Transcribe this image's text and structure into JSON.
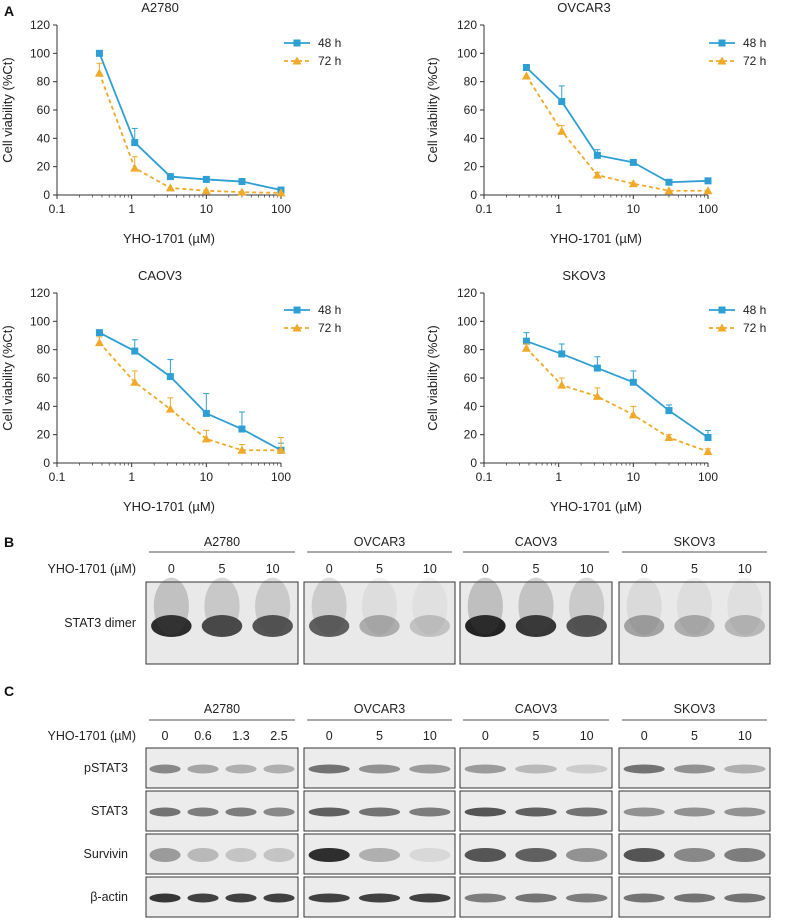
{
  "colors": {
    "h48": "#2E9FD3",
    "h72": "#F0A928",
    "blot_band": "#111111"
  },
  "panels": {
    "A": "A",
    "B": "B",
    "C": "C"
  },
  "chart_data": [
    {
      "type": "line",
      "title": "A2780",
      "xlabel": "YHO-1701 (µM)",
      "ylabel": "Cell viability (%Ct)",
      "xscale": "log",
      "xlim": [
        0.1,
        100
      ],
      "ylim": [
        0,
        120
      ],
      "xticks": [
        "0.1",
        "1",
        "10",
        "100"
      ],
      "yticks": [
        "0",
        "20",
        "40",
        "60",
        "80",
        "100",
        "120"
      ],
      "legend_position": "top-right",
      "x": [
        0.37,
        1.1,
        3.3,
        10,
        30,
        100
      ],
      "series": [
        {
          "name": "48 h",
          "values": [
            100,
            37,
            13,
            11,
            9.5,
            3.5
          ],
          "err": [
            0,
            10,
            0,
            0,
            0,
            0
          ],
          "style": "solid",
          "marker": "square"
        },
        {
          "name": "72 h",
          "values": [
            86,
            19,
            5,
            3,
            2,
            1.5
          ],
          "err": [
            7,
            8,
            0,
            0,
            0,
            0
          ],
          "style": "dashed",
          "marker": "triangle"
        }
      ]
    },
    {
      "type": "line",
      "title": "OVCAR3",
      "xlabel": "YHO-1701 (µM)",
      "ylabel": "Cell viability (%Ct)",
      "xscale": "log",
      "xlim": [
        0.1,
        100
      ],
      "ylim": [
        0,
        120
      ],
      "xticks": [
        "0.1",
        "1",
        "10",
        "100"
      ],
      "yticks": [
        "0",
        "20",
        "40",
        "60",
        "80",
        "100",
        "120"
      ],
      "legend_position": "top-right",
      "x": [
        0.37,
        1.1,
        3.3,
        10,
        30,
        100
      ],
      "series": [
        {
          "name": "48 h",
          "values": [
            90,
            66,
            28,
            23,
            9,
            10
          ],
          "err": [
            0,
            11,
            4,
            0,
            0,
            0
          ],
          "style": "solid",
          "marker": "square"
        },
        {
          "name": "72 h",
          "values": [
            84,
            45,
            14,
            8,
            3,
            3
          ],
          "err": [
            0,
            4,
            2,
            0,
            0,
            0
          ],
          "style": "dashed",
          "marker": "triangle"
        }
      ]
    },
    {
      "type": "line",
      "title": "CAOV3",
      "xlabel": "YHO-1701 (µM)",
      "ylabel": "Cell viability (%Ct)",
      "xscale": "log",
      "xlim": [
        0.1,
        100
      ],
      "ylim": [
        0,
        120
      ],
      "xticks": [
        "0.1",
        "1",
        "10",
        "100"
      ],
      "yticks": [
        "0",
        "20",
        "40",
        "60",
        "80",
        "100",
        "120"
      ],
      "legend_position": "top-right",
      "x": [
        0.37,
        1.1,
        3.3,
        10,
        30,
        100
      ],
      "series": [
        {
          "name": "48 h",
          "values": [
            92,
            79,
            61,
            35,
            24,
            9
          ],
          "err": [
            0,
            8,
            12,
            14,
            12,
            5
          ],
          "style": "solid",
          "marker": "square"
        },
        {
          "name": "72 h",
          "values": [
            85,
            57,
            38,
            17,
            9,
            9
          ],
          "err": [
            4,
            8,
            8,
            6,
            4,
            9
          ],
          "style": "dashed",
          "marker": "triangle"
        }
      ]
    },
    {
      "type": "line",
      "title": "SKOV3",
      "xlabel": "YHO-1701 (µM)",
      "ylabel": "Cell viability (%Ct)",
      "xscale": "log",
      "xlim": [
        0.1,
        100
      ],
      "ylim": [
        0,
        120
      ],
      "xticks": [
        "0.1",
        "1",
        "10",
        "100"
      ],
      "yticks": [
        "0",
        "20",
        "40",
        "60",
        "80",
        "100",
        "120"
      ],
      "legend_position": "top-right",
      "x": [
        0.37,
        1.1,
        3.3,
        10,
        30,
        100
      ],
      "series": [
        {
          "name": "48 h",
          "values": [
            86,
            77,
            67,
            57,
            37,
            18
          ],
          "err": [
            6,
            7,
            8,
            8,
            4,
            5
          ],
          "style": "solid",
          "marker": "square"
        },
        {
          "name": "72 h",
          "values": [
            81,
            55,
            47,
            34,
            18,
            8
          ],
          "err": [
            3,
            5,
            6,
            6,
            2,
            2
          ],
          "style": "dashed",
          "marker": "triangle"
        }
      ]
    }
  ],
  "blots": {
    "cell_lines": [
      "A2780",
      "OVCAR3",
      "CAOV3",
      "SKOV3"
    ],
    "treatment_label": "YHO-1701 (µM)",
    "B": {
      "doses": [
        [
          "0",
          "5",
          "10"
        ],
        [
          "0",
          "5",
          "10"
        ],
        [
          "0",
          "5",
          "10"
        ],
        [
          "0",
          "5",
          "10"
        ]
      ],
      "row_label": "STAT3 dimer",
      "intensity": [
        [
          0.95,
          0.8,
          0.75
        ],
        [
          0.7,
          0.3,
          0.2
        ],
        [
          1.0,
          0.9,
          0.75
        ],
        [
          0.35,
          0.3,
          0.25
        ]
      ]
    },
    "C": {
      "doses": [
        [
          "0",
          "0.6",
          "1.3",
          "2.5"
        ],
        [
          "0",
          "5",
          "10"
        ],
        [
          "0",
          "5",
          "10"
        ],
        [
          "0",
          "5",
          "10"
        ]
      ],
      "rows": [
        {
          "label": "pSTAT3",
          "intensity": [
            [
              0.5,
              0.35,
              0.3,
              0.3
            ],
            [
              0.6,
              0.45,
              0.4
            ],
            [
              0.4,
              0.25,
              0.15
            ],
            [
              0.6,
              0.45,
              0.3
            ]
          ]
        },
        {
          "label": "STAT3",
          "intensity": [
            [
              0.6,
              0.55,
              0.55,
              0.5
            ],
            [
              0.7,
              0.6,
              0.55
            ],
            [
              0.75,
              0.7,
              0.6
            ],
            [
              0.45,
              0.45,
              0.45
            ]
          ]
        },
        {
          "label": "Survivin",
          "intensity": [
            [
              0.4,
              0.25,
              0.2,
              0.2
            ],
            [
              0.95,
              0.3,
              0.1
            ],
            [
              0.75,
              0.7,
              0.45
            ],
            [
              0.75,
              0.5,
              0.55
            ]
          ]
        },
        {
          "label": "β-actin",
          "intensity": [
            [
              0.9,
              0.85,
              0.85,
              0.85
            ],
            [
              0.85,
              0.85,
              0.85
            ],
            [
              0.55,
              0.6,
              0.55
            ],
            [
              0.6,
              0.6,
              0.6
            ]
          ]
        }
      ]
    }
  }
}
